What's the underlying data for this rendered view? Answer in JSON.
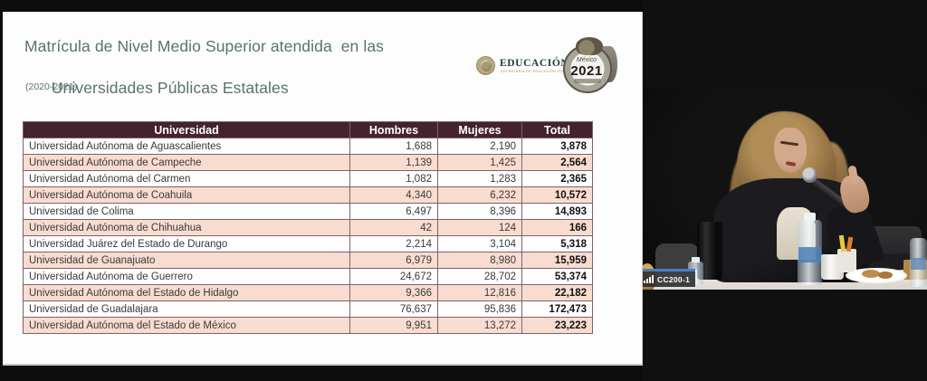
{
  "slide": {
    "title_line1": "Matrícula de Nivel Medio Superior atendida  en las",
    "title_line2": "Universidades Públicas Estatales",
    "subtitle": "(2020-2021)",
    "title_color": "#587370",
    "logos": {
      "educacion_wordmark": "EDUCACIÓN",
      "educacion_subline": "SECRETARÍA DE EDUCACIÓN PÚBLICA",
      "badge_country": "México",
      "badge_year": "2021"
    }
  },
  "table": {
    "header_bg": "#45232e",
    "alt_row_bg": "#f8dcd0",
    "headers": [
      "Universidad",
      "Hombres",
      "Mujeres",
      "Total"
    ],
    "rows": [
      [
        "Universidad Autónoma de Aguascalientes",
        "1,688",
        "2,190",
        "3,878"
      ],
      [
        "Universidad Autónoma de Campeche",
        "1,139",
        "1,425",
        "2,564"
      ],
      [
        "Universidad Autónoma del Carmen",
        "1,082",
        "1,283",
        "2,365"
      ],
      [
        "Universidad Autónoma de Coahuila",
        "4,340",
        "6,232",
        "10,572"
      ],
      [
        "Universidad de Colima",
        "6,497",
        "8,396",
        "14,893"
      ],
      [
        "Universidad Autónoma de Chihuahua",
        "42",
        "124",
        "166"
      ],
      [
        "Universidad Juárez del Estado de Durango",
        "2,214",
        "3,104",
        "5,318"
      ],
      [
        "Universidad de Guanajuato",
        "6,979",
        "8,980",
        "15,959"
      ],
      [
        "Universidad Autónoma de Guerrero",
        "24,672",
        "28,702",
        "53,374"
      ],
      [
        "Universidad Autónoma del Estado de Hidalgo",
        "9,366",
        "12,816",
        "22,182"
      ],
      [
        "Universidad de Guadalajara",
        "76,637",
        "95,836",
        "172,473"
      ],
      [
        "Universidad Autónoma del Estado de México",
        "9,951",
        "13,272",
        "23,223"
      ]
    ]
  },
  "video": {
    "participant_label": "CC200-1"
  }
}
